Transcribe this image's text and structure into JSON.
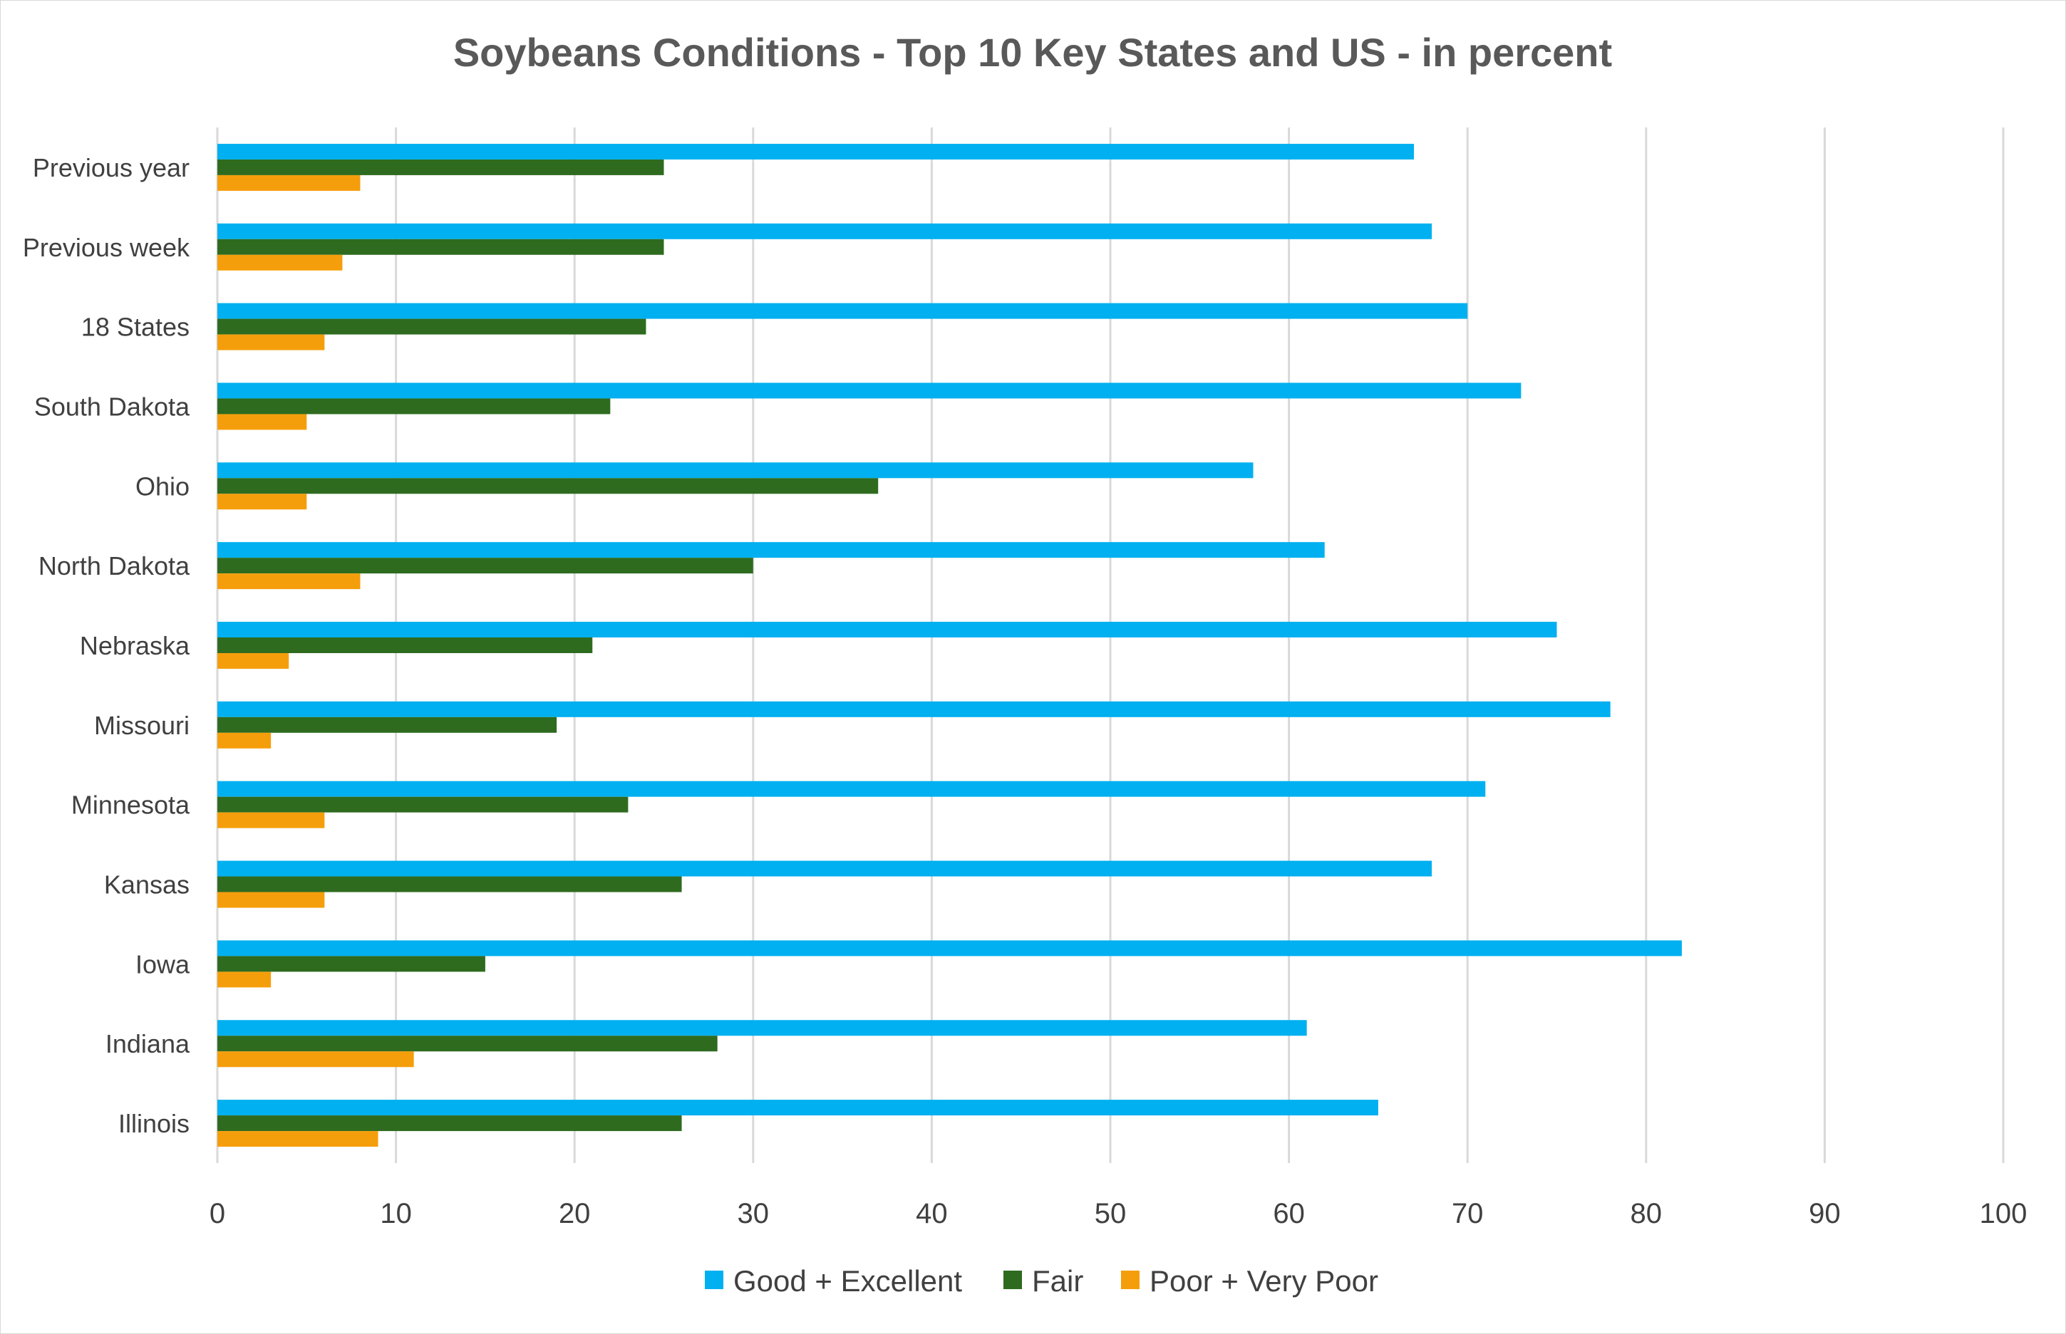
{
  "chart_data": {
    "type": "bar",
    "orientation": "horizontal",
    "title": "Soybeans Conditions - Top 10 Key States and US - in percent",
    "xlabel": "",
    "ylabel": "",
    "xlim": [
      0,
      100
    ],
    "x_ticks": [
      "0",
      "10",
      "20",
      "30",
      "40",
      "50",
      "60",
      "70",
      "80",
      "90",
      "100"
    ],
    "grid": "vertical",
    "legend_position": "bottom",
    "categories": [
      "Previous year",
      "Previous week",
      "18 States",
      "South Dakota",
      "Ohio",
      "North Dakota",
      "Nebraska",
      "Missouri",
      "Minnesota",
      "Kansas",
      "Iowa",
      "Indiana",
      "Illinois"
    ],
    "series": [
      {
        "name": "Good + Excellent",
        "color": "#00b0f0",
        "values": [
          67,
          68,
          70,
          73,
          58,
          62,
          75,
          78,
          71,
          68,
          82,
          61,
          65
        ]
      },
      {
        "name": "Fair",
        "color": "#2e6b1f",
        "values": [
          25,
          25,
          24,
          22,
          37,
          30,
          21,
          19,
          23,
          26,
          15,
          28,
          26
        ]
      },
      {
        "name": "Poor + Very Poor",
        "color": "#f59e0b",
        "values": [
          8,
          7,
          6,
          5,
          5,
          8,
          4,
          3,
          6,
          6,
          3,
          11,
          9
        ]
      }
    ]
  }
}
